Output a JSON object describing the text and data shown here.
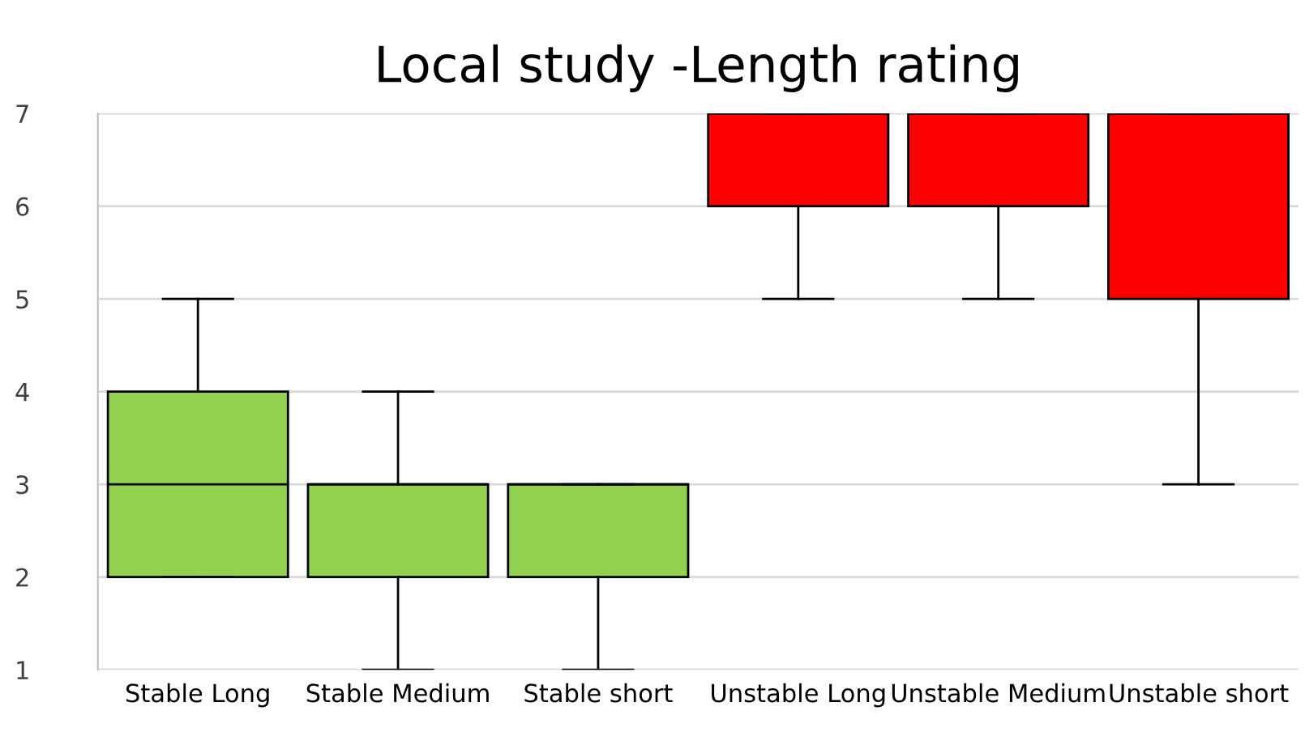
{
  "chart_data": {
    "type": "box",
    "title": "Local study -Length rating",
    "categories": [
      "Stable Long",
      "Stable Medium",
      "Stable short",
      "Unstable Long",
      "Unstable Medium",
      "Unstable short"
    ],
    "colors": [
      "#92d050",
      "#92d050",
      "#92d050",
      "#ff0000",
      "#ff0000",
      "#ff0000"
    ],
    "boxes": [
      {
        "low": 2,
        "q1": 2,
        "median": 3,
        "q3": 4,
        "high": 5
      },
      {
        "low": 1,
        "q1": 2,
        "median": 3,
        "q3": 3,
        "high": 4
      },
      {
        "low": 1,
        "q1": 2,
        "median": 3,
        "q3": 3,
        "high": 3
      },
      {
        "low": 5,
        "q1": 6,
        "median": 7,
        "q3": 7,
        "high": 7
      },
      {
        "low": 5,
        "q1": 6,
        "median": 7,
        "q3": 7,
        "high": 7
      },
      {
        "low": 3,
        "q1": 5,
        "median": 7,
        "q3": 7,
        "high": 7
      }
    ],
    "ylim": [
      1,
      7
    ],
    "yticks": [
      1,
      2,
      3,
      4,
      5,
      6,
      7
    ],
    "grid": "y",
    "legend": false
  }
}
